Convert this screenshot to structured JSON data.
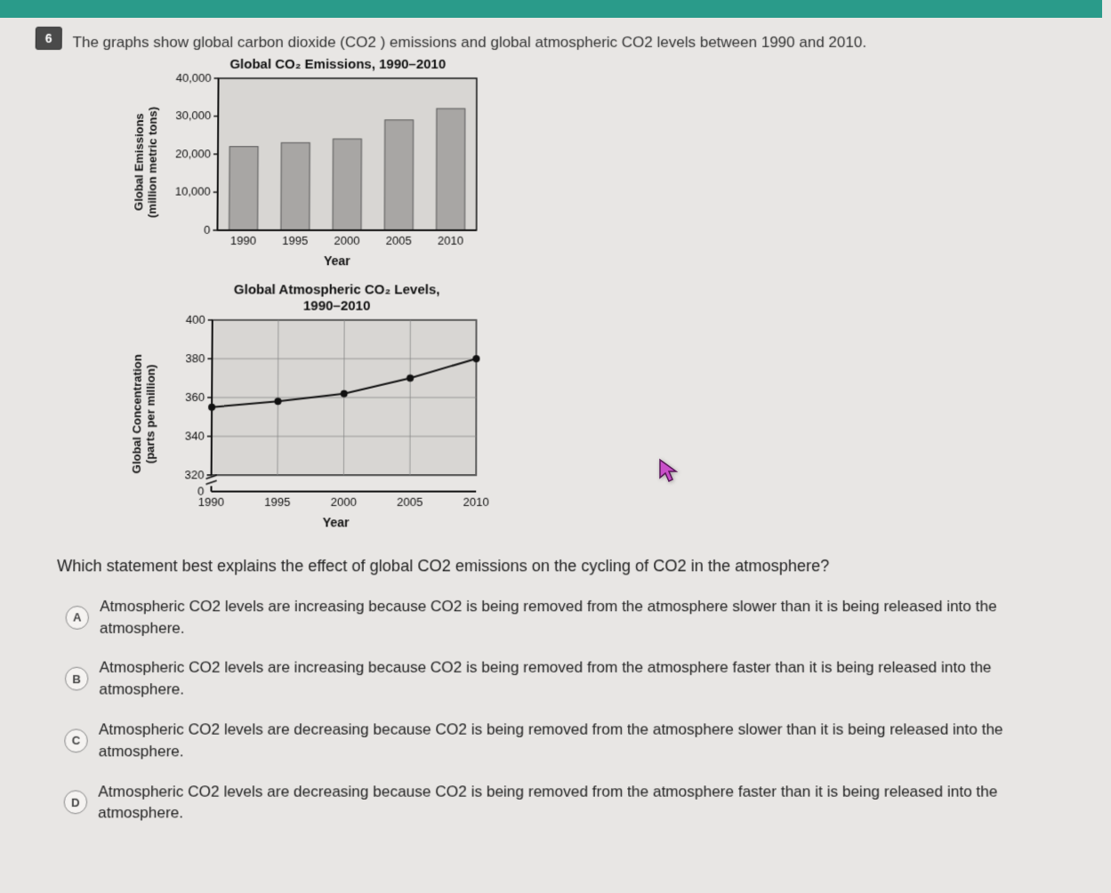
{
  "question": {
    "number": "6",
    "intro": "The graphs show global carbon dioxide (CO2 ) emissions and global atmospheric CO2 levels between 1990 and 2010.",
    "prompt": "Which statement best explains the effect of global CO2 emissions on the cycling of CO2 in the atmosphere?"
  },
  "chart1": {
    "type": "bar",
    "title": "Global CO₂ Emissions, 1990–2010",
    "ylabel": "Global Emissions\n(million metric tons)",
    "xlabel": "Year",
    "categories": [
      "1990",
      "1995",
      "2000",
      "2005",
      "2010"
    ],
    "values": [
      22000,
      23000,
      24000,
      29000,
      32000
    ],
    "ylim": [
      0,
      40000
    ],
    "yticks": [
      0,
      10000,
      20000,
      30000,
      40000
    ],
    "ytick_labels": [
      "0",
      "10,000",
      "20,000",
      "30,000",
      "40,000"
    ],
    "bar_color": "#a8a6a4",
    "bar_border": "#555",
    "plot_bg": "#d8d6d3",
    "axis_color": "#111",
    "tick_fontsize": 13,
    "bar_width_ratio": 0.55
  },
  "chart2": {
    "type": "line",
    "title": "Global Atmospheric CO₂ Levels,\n1990–2010",
    "ylabel": "Global Concentration\n(parts per million)",
    "xlabel": "Year",
    "x": [
      1990,
      1995,
      2000,
      2005,
      2010
    ],
    "y": [
      355,
      358,
      362,
      370,
      380
    ],
    "xlim": [
      1990,
      2010
    ],
    "ylim_segments": {
      "break_from": 0,
      "break_to": 320,
      "top": 400,
      "ticks": [
        320,
        340,
        360,
        380,
        400
      ],
      "zero_label": "0"
    },
    "xtick_labels": [
      "1990",
      "1995",
      "2000",
      "2005",
      "2010"
    ],
    "line_color": "#111",
    "marker_color": "#111",
    "marker_size": 4,
    "plot_bg": "#d8d6d3",
    "grid_color": "#888",
    "axis_color": "#111",
    "tick_fontsize": 13
  },
  "options": [
    {
      "letter": "A",
      "text": "Atmospheric CO2 levels are increasing because CO2 is being removed from the atmosphere slower than it is being released into the atmosphere."
    },
    {
      "letter": "B",
      "text": "Atmospheric CO2 levels are increasing because CO2 is being removed from the atmosphere faster than it is being released into the atmosphere."
    },
    {
      "letter": "C",
      "text": "Atmospheric CO2 levels are decreasing because CO2 is being removed from the atmosphere slower than it is being released into the atmosphere."
    },
    {
      "letter": "D",
      "text": "Atmospheric CO2 levels are decreasing because CO2 is being removed from the atmosphere faster than it is being released into the atmosphere."
    }
  ],
  "colors": {
    "topbar": "#2a9b8a",
    "page_bg": "#e8e6e4",
    "text": "#222",
    "cursor_fill": "#c94fc9",
    "cursor_stroke": "#5a1a5a"
  }
}
